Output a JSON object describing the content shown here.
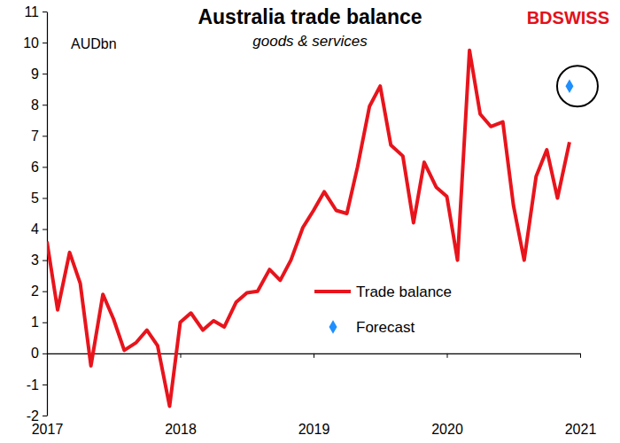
{
  "chart_data": {
    "type": "line",
    "title": "Australia trade balance",
    "subtitle": "goods & services",
    "ylabel": "AUDbn",
    "annotations": [
      "BDSWISS"
    ],
    "xlim": [
      2017,
      2021
    ],
    "xticks": [
      2017,
      2018,
      2019,
      2020,
      2021
    ],
    "ylim": [
      -2,
      11
    ],
    "yticks": [
      -2,
      -1,
      0,
      1,
      2,
      3,
      4,
      5,
      6,
      7,
      8,
      9,
      10,
      11
    ],
    "grid": false,
    "legend": "bottom-center",
    "series": [
      {
        "name": "Trade balance",
        "type": "line",
        "color": "#e8141c",
        "line_style": "solid",
        "x": [
          2017,
          2017.08,
          2017.17,
          2017.25,
          2017.33,
          2017.42,
          2017.5,
          2017.58,
          2017.67,
          2017.75,
          2017.83,
          2017.92,
          2018,
          2018.08,
          2018.17,
          2018.25,
          2018.33,
          2018.42,
          2018.5,
          2018.58,
          2018.67,
          2018.75,
          2018.83,
          2018.92,
          2019,
          2019.08,
          2019.17,
          2019.25,
          2019.33,
          2019.42,
          2019.5,
          2019.58,
          2019.67,
          2019.75,
          2019.83,
          2019.92,
          2020,
          2020.08,
          2020.17,
          2020.25,
          2020.33,
          2020.42,
          2020.5,
          2020.58,
          2020.67,
          2020.75,
          2020.83,
          2020.92
        ],
        "values": [
          3.6,
          1.4,
          3.25,
          2.25,
          -0.4,
          1.9,
          1.1,
          0.1,
          0.35,
          0.75,
          0.25,
          -1.7,
          1.0,
          1.3,
          0.75,
          1.05,
          0.85,
          1.65,
          1.95,
          2.0,
          2.7,
          2.35,
          3.0,
          4.05,
          4.6,
          5.2,
          4.6,
          4.5,
          6.0,
          7.95,
          8.6,
          6.7,
          6.35,
          4.2,
          6.15,
          5.35,
          5.05,
          3.0,
          9.75,
          7.7,
          7.3,
          7.45,
          4.75,
          3.0,
          5.7,
          6.55,
          5.0,
          6.8
        ]
      },
      {
        "name": "Forecast",
        "type": "scatter",
        "color": "#1f8fff",
        "marker": "diamond",
        "x": [
          2020.92
        ],
        "values": [
          8.6
        ]
      }
    ]
  }
}
